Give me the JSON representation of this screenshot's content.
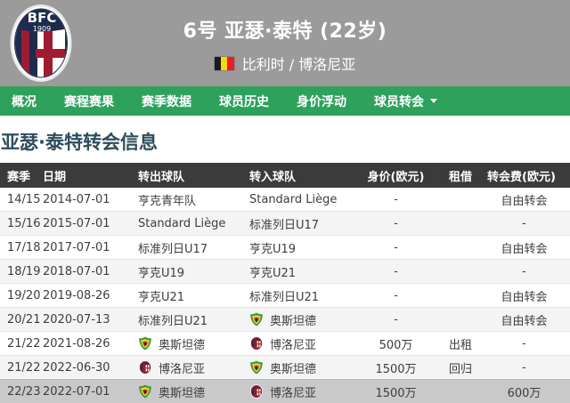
{
  "header": {
    "club_badge": "bologna-crest",
    "badge_text_top": "BFC",
    "badge_text_year": "1909",
    "title": "6号 亚瑟·泰特 (22岁)",
    "flag": "belgium-flag",
    "subtitle": "比利时 / 博洛尼亚"
  },
  "nav": {
    "items": [
      {
        "label": "概况",
        "has_dropdown": false
      },
      {
        "label": "赛程赛果",
        "has_dropdown": false
      },
      {
        "label": "赛季数据",
        "has_dropdown": false
      },
      {
        "label": "球员历史",
        "has_dropdown": false
      },
      {
        "label": "身价浮动",
        "has_dropdown": false
      },
      {
        "label": "球员转会",
        "has_dropdown": true
      }
    ]
  },
  "section": {
    "heading": "亚瑟·泰特转会信息"
  },
  "table": {
    "columns": [
      "赛季",
      "日期",
      "转出球队",
      "转入球队",
      "身价(欧元)",
      "租借",
      "转会费(欧元)"
    ],
    "rows": [
      {
        "season": "14/15",
        "date": "2014-07-01",
        "from": {
          "name": "亨克青年队",
          "logo": ""
        },
        "to": {
          "name": "Standard Liège",
          "logo": ""
        },
        "value": "-",
        "loan": "",
        "fee": "自由转会",
        "highlight": false
      },
      {
        "season": "15/16",
        "date": "2015-07-01",
        "from": {
          "name": "Standard Liège",
          "logo": ""
        },
        "to": {
          "name": "标准列日U17",
          "logo": ""
        },
        "value": "-",
        "loan": "",
        "fee": "-",
        "highlight": false
      },
      {
        "season": "17/18",
        "date": "2017-07-01",
        "from": {
          "name": "标准列日U17",
          "logo": ""
        },
        "to": {
          "name": "亨克U19",
          "logo": ""
        },
        "value": "-",
        "loan": "",
        "fee": "自由转会",
        "highlight": false
      },
      {
        "season": "18/19",
        "date": "2018-07-01",
        "from": {
          "name": "亨克U19",
          "logo": ""
        },
        "to": {
          "name": "亨克U21",
          "logo": ""
        },
        "value": "-",
        "loan": "",
        "fee": "-",
        "highlight": false
      },
      {
        "season": "19/20",
        "date": "2019-08-26",
        "from": {
          "name": "亨克U21",
          "logo": ""
        },
        "to": {
          "name": "标准列日U21",
          "logo": ""
        },
        "value": "-",
        "loan": "",
        "fee": "自由转会",
        "highlight": false
      },
      {
        "season": "20/21",
        "date": "2020-07-13",
        "from": {
          "name": "标准列日U21",
          "logo": ""
        },
        "to": {
          "name": "奥斯坦德",
          "logo": "oostende"
        },
        "value": "-",
        "loan": "",
        "fee": "自由转会",
        "highlight": false
      },
      {
        "season": "21/22",
        "date": "2021-08-26",
        "from": {
          "name": "奥斯坦德",
          "logo": "oostende"
        },
        "to": {
          "name": "博洛尼亚",
          "logo": "bologna"
        },
        "value": "500万",
        "loan": "出租",
        "fee": "-",
        "highlight": false
      },
      {
        "season": "21/22",
        "date": "2022-06-30",
        "from": {
          "name": "博洛尼亚",
          "logo": "bologna"
        },
        "to": {
          "name": "奥斯坦德",
          "logo": "oostende"
        },
        "value": "1500万",
        "loan": "回归",
        "fee": "-",
        "highlight": false
      },
      {
        "season": "22/23",
        "date": "2022-07-01",
        "from": {
          "name": "奥斯坦德",
          "logo": "oostende"
        },
        "to": {
          "name": "博洛尼亚",
          "logo": "bologna"
        },
        "value": "1500万",
        "loan": "",
        "fee": "600万",
        "highlight": true
      }
    ]
  },
  "colors": {
    "header_bg": "#9b9b9b",
    "nav_green": "#2ea15d",
    "table_header_bg": "#3b3b3b",
    "heading_text": "#2e4d5e",
    "highlight_row": "#c9c9c9",
    "stripe_row": "#f4f4f4"
  }
}
